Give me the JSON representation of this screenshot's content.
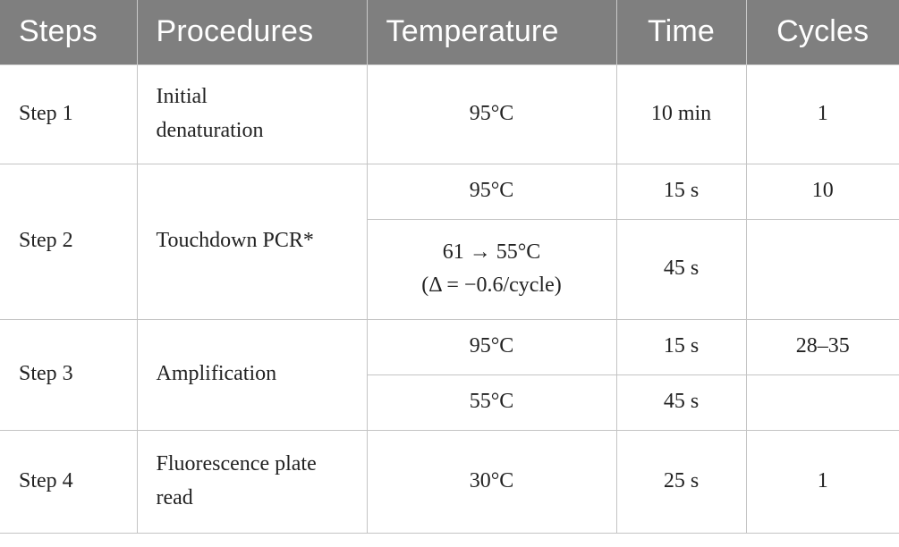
{
  "header": {
    "steps": "Steps",
    "procedures": "Procedures",
    "temperature": "Temperature",
    "time": "Time",
    "cycles": "Cycles"
  },
  "rows": {
    "step1": {
      "step": "Step 1",
      "procedure_line1": "Initial",
      "procedure_line2": "denaturation",
      "temperature": "95°C",
      "time": "10 min",
      "cycles": "1"
    },
    "step2": {
      "step": "Step 2",
      "procedure": "Touchdown PCR*",
      "sub1": {
        "temperature": "95°C",
        "time": "15 s",
        "cycles": "10"
      },
      "sub2": {
        "temperature_line1": "61 → 55°C",
        "temperature_line2": "(Δ = −0.6/cycle)",
        "time": "45 s",
        "cycles": ""
      }
    },
    "step3": {
      "step": "Step 3",
      "procedure": "Amplification",
      "sub1": {
        "temperature": "95°C",
        "time": "15 s",
        "cycles": "28–35"
      },
      "sub2": {
        "temperature": "55°C",
        "time": "45 s",
        "cycles": ""
      }
    },
    "step4": {
      "step": "Step 4",
      "procedure_line1": "Fluorescence plate",
      "procedure_line2": "read",
      "temperature": "30°C",
      "time": "25 s",
      "cycles": "1"
    }
  }
}
